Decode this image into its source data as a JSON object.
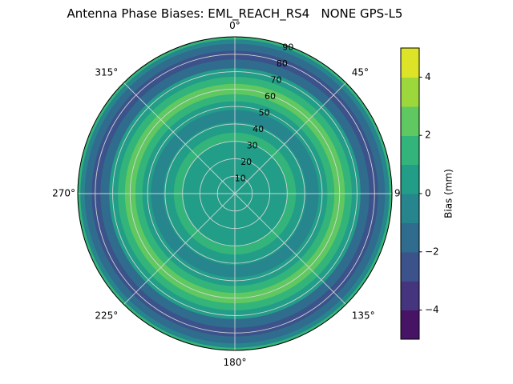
{
  "title": "Antenna Phase Biases: EML_REACH_RS4   NONE GPS-L5",
  "chart_data": {
    "type": "heatmap",
    "subtype": "polar_contour",
    "title": "Antenna Phase Biases: EML_REACH_RS4   NONE GPS-L5",
    "angular_ticks_deg": [
      0,
      45,
      90,
      135,
      180,
      225,
      270,
      315
    ],
    "angular_tick_labels": [
      "0°",
      "45°",
      "90°",
      "135°",
      "180°",
      "225°",
      "270°",
      "315°"
    ],
    "theta_zero_location": "top",
    "theta_direction": "clockwise",
    "radial_ticks": [
      10,
      20,
      30,
      40,
      50,
      60,
      70,
      80,
      90
    ],
    "radial_max": 90,
    "radial_label_angle_deg": 20,
    "colorbar": {
      "label": "Bias (mm)",
      "vmin": -5,
      "vmax": 5,
      "levels": 10,
      "tick_values": [
        4,
        2,
        0,
        -2,
        -4
      ],
      "tick_labels": [
        "4",
        "2",
        "0",
        "−2",
        "−4"
      ],
      "colormap": "viridis"
    },
    "rings": [
      {
        "r0": 0,
        "r1": 8,
        "bias_mm": 0.3
      },
      {
        "r0": 8,
        "r1": 16,
        "bias_mm": 0.7
      },
      {
        "r0": 16,
        "r1": 24,
        "bias_mm": 0.2
      },
      {
        "r0": 24,
        "r1": 30,
        "bias_mm": 0.8
      },
      {
        "r0": 30,
        "r1": 35,
        "bias_mm": 1.6
      },
      {
        "r0": 35,
        "r1": 41,
        "bias_mm": 0.6
      },
      {
        "r0": 41,
        "r1": 48,
        "bias_mm": -0.4
      },
      {
        "r0": 48,
        "r1": 53,
        "bias_mm": 0.4
      },
      {
        "r0": 53,
        "r1": 57,
        "bias_mm": 1.6
      },
      {
        "r0": 57,
        "r1": 63,
        "bias_mm": 2.7
      },
      {
        "r0": 63,
        "r1": 67,
        "bias_mm": 1.6
      },
      {
        "r0": 67,
        "r1": 72,
        "bias_mm": 0.2
      },
      {
        "r0": 72,
        "r1": 77,
        "bias_mm": -1.2
      },
      {
        "r0": 77,
        "r1": 82,
        "bias_mm": -2.3
      },
      {
        "r0": 82,
        "r1": 86,
        "bias_mm": -1.3
      },
      {
        "r0": 86,
        "r1": 88.5,
        "bias_mm": -0.3
      },
      {
        "r0": 88.5,
        "r1": 90,
        "bias_mm": 1.6
      }
    ]
  },
  "colors": {
    "background": "#ffffff",
    "grid": "#d9d9d9",
    "spine": "#000000",
    "text": "#000000"
  },
  "viridis_stops": [
    "#440154",
    "#482475",
    "#414487",
    "#355f8d",
    "#2a788e",
    "#21918c",
    "#22a884",
    "#44bf70",
    "#7ad151",
    "#bddf26",
    "#fde725"
  ]
}
